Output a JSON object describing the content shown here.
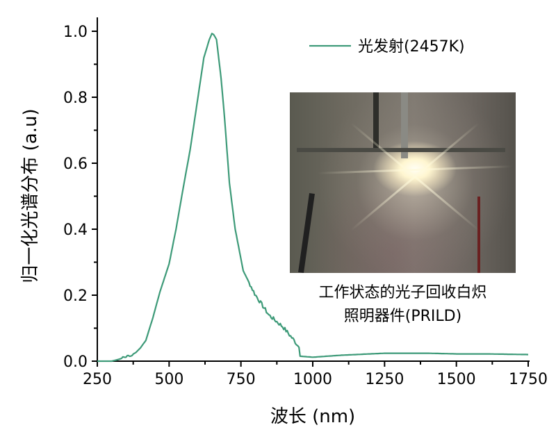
{
  "chart_data": {
    "type": "line",
    "title": "",
    "xlabel": "波长 (nm)",
    "ylabel": "归一化光谱分布 (a.u)",
    "xlim": [
      250,
      1750
    ],
    "ylim": [
      0,
      1.0
    ],
    "xticks": [
      "250",
      "500",
      "750",
      "1000",
      "1250",
      "1500",
      "1750"
    ],
    "yticks": [
      "0.0",
      "0.2",
      "0.4",
      "0.6",
      "0.8",
      "1.0"
    ],
    "grid": false,
    "legend_position": "top-right",
    "series": [
      {
        "name": "光发射(2457K)",
        "color": "#3d9a78",
        "x": [
          250,
          300,
          323,
          350,
          371,
          400,
          419,
          444,
          468,
          500,
          524,
          548,
          573,
          597,
          621,
          640,
          649,
          655,
          665,
          681,
          693,
          710,
          730,
          758,
          798,
          847,
          895,
          935,
          952,
          956,
          1000,
          1100,
          1250,
          1400,
          1500,
          1600,
          1750
        ],
        "y": [
          0,
          0,
          0.005,
          0.012,
          0.015,
          0.04,
          0.063,
          0.133,
          0.21,
          0.295,
          0.4,
          0.52,
          0.64,
          0.78,
          0.92,
          0.975,
          0.993,
          0.99,
          0.975,
          0.857,
          0.737,
          0.54,
          0.4,
          0.274,
          0.204,
          0.14,
          0.105,
          0.063,
          0.042,
          0.015,
          0.012,
          0.018,
          0.024,
          0.024,
          0.022,
          0.022,
          0.02
        ]
      }
    ]
  },
  "inset": {
    "caption_line1": "工作状态的光子回收白炽",
    "caption_line2": "照明器件(PRILD)"
  }
}
